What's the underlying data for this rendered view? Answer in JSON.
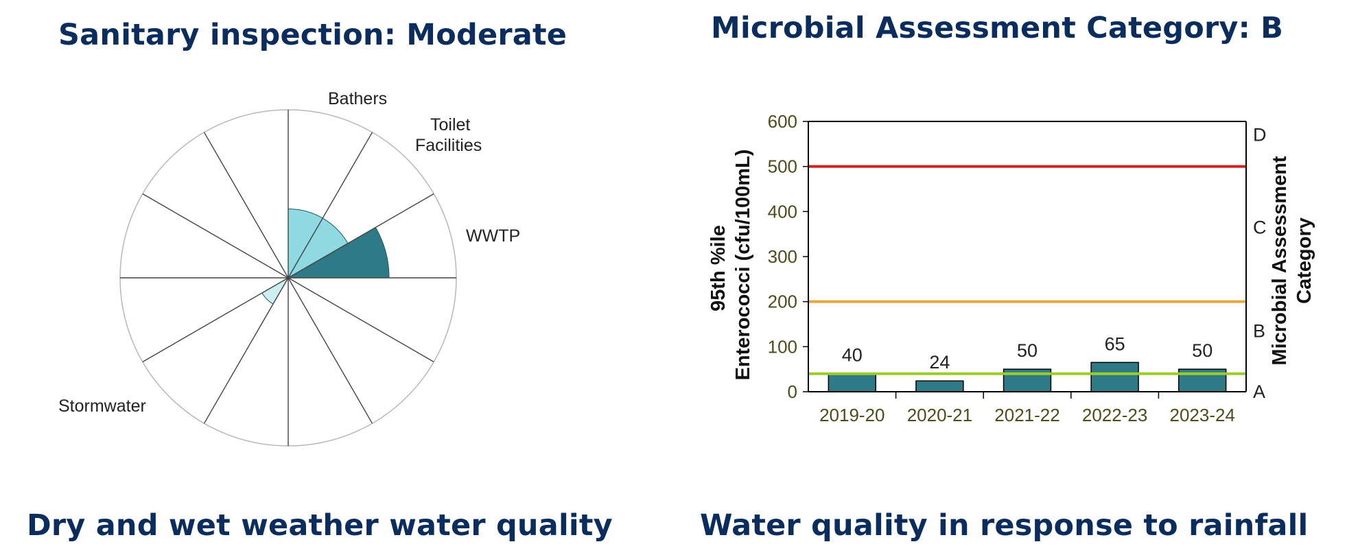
{
  "headings": {
    "sanitary": "Sanitary inspection: Moderate",
    "microbial": "Microbial Assessment Category: B",
    "dry_wet": "Dry and wet weather water quality",
    "rainfall": "Water quality in response to rainfall"
  },
  "chart_data": [
    {
      "type": "polar",
      "title": "Sanitary inspection: Moderate",
      "sectors": 12,
      "max_value": 1,
      "series": [
        {
          "name": "Bathers",
          "sector_index": 0,
          "value": 0.41,
          "color": "#8fd9e3"
        },
        {
          "name": "Toilet Facilities",
          "sector_index": 1,
          "value": 0.41,
          "color": "#8fd9e3"
        },
        {
          "name": "WWTP",
          "sector_index": 2,
          "value": 0.6,
          "color": "#2e7b87"
        },
        {
          "name": "Stormwater",
          "sector_index": 7,
          "value": 0.18,
          "color": "#cdeff0"
        }
      ],
      "labels": [
        "Bathers",
        "Toilet",
        "Facilities",
        "WWTP",
        "Stormwater"
      ]
    },
    {
      "type": "bar",
      "title": "Microbial Assessment Category: B",
      "categories": [
        "2019-20",
        "2020-21",
        "2021-22",
        "2022-23",
        "2023-24"
      ],
      "values": [
        40,
        24,
        50,
        65,
        50
      ],
      "bar_color": "#2e7b87",
      "ylim": [
        0,
        600
      ],
      "yticks": [
        "0",
        "100",
        "200",
        "300",
        "400",
        "500",
        "600"
      ],
      "ylabel_line1": "95th %ile",
      "ylabel_line2": "Enterococci (cfu/100mL)",
      "y2label_line1": "Microbial  Assessment",
      "y2label_line2": "Category",
      "thresholds": [
        {
          "value": 40,
          "color": "#9ccc2a"
        },
        {
          "value": 200,
          "color": "#e8a83a"
        },
        {
          "value": 500,
          "color": "#d42222"
        }
      ],
      "categories_right": [
        {
          "label": "A",
          "value": 0
        },
        {
          "label": "B",
          "value": 135
        },
        {
          "label": "C",
          "value": 365
        },
        {
          "label": "D",
          "value": 570
        }
      ]
    }
  ]
}
